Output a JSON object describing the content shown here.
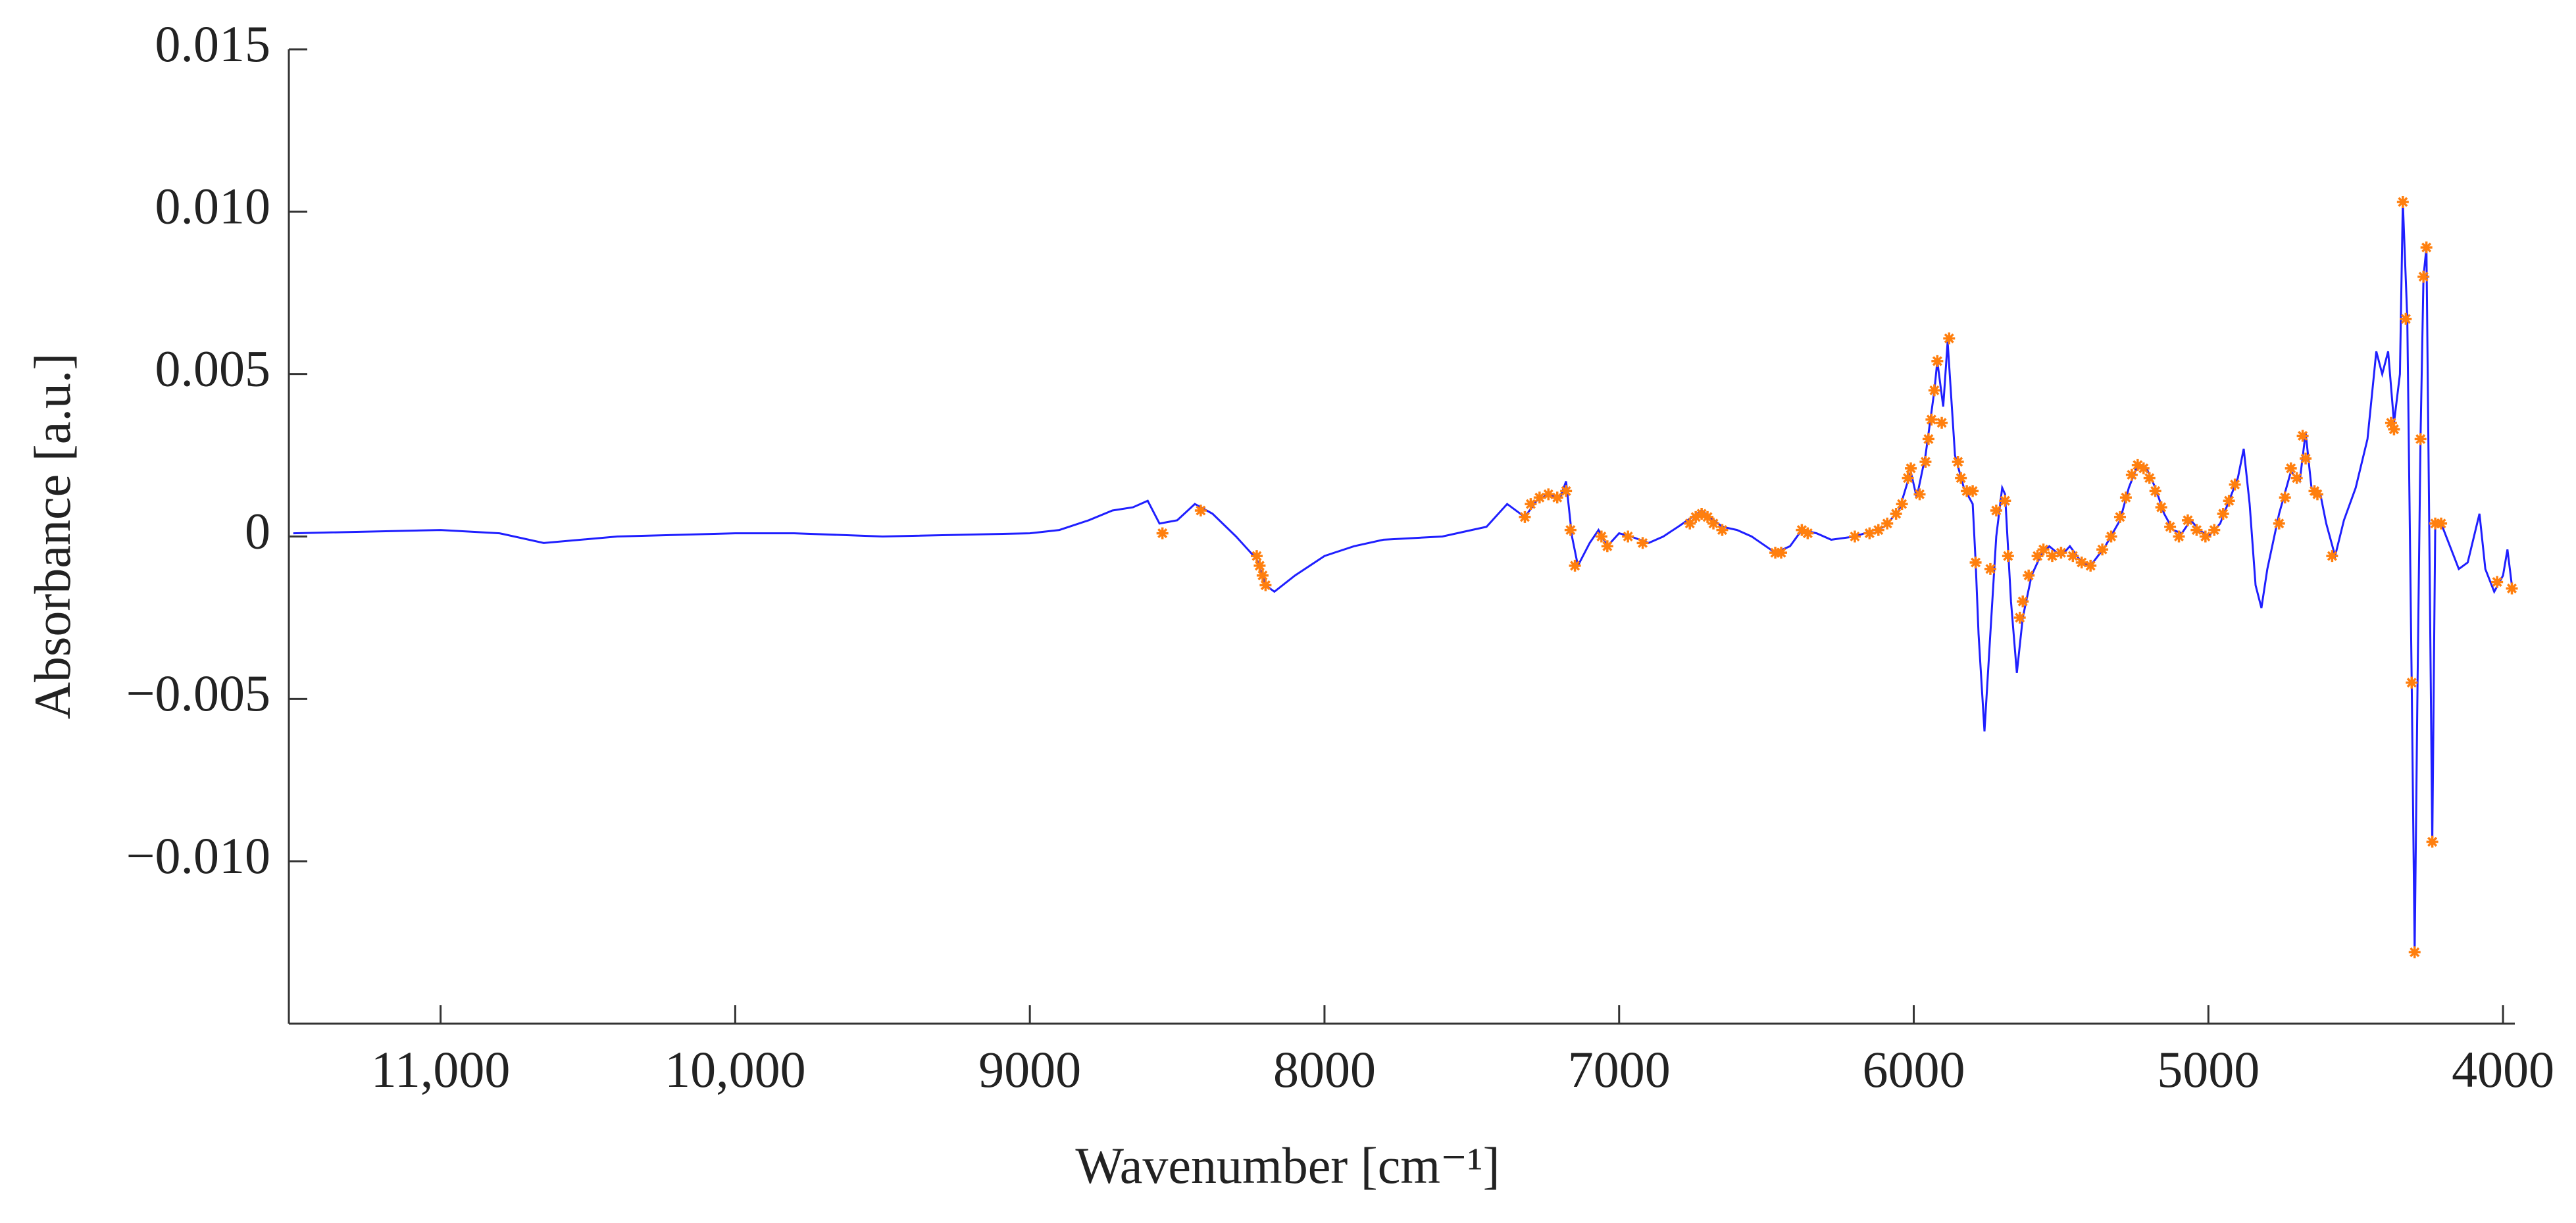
{
  "chart_data": {
    "type": "line",
    "xlabel": "Wavenumber [cm⁻¹]",
    "ylabel": "Absorbance [a.u.]",
    "xlim": [
      11515,
      3960
    ],
    "ylim": [
      -0.015,
      0.015
    ],
    "xticks": [
      {
        "value": 11000,
        "label": "11,000"
      },
      {
        "value": 10000,
        "label": "10,000"
      },
      9000,
      8000,
      7000,
      6000,
      5000,
      4000
    ],
    "yticks": [
      0.015,
      {
        "value": 0.01,
        "label": "0.010"
      },
      0.005,
      0,
      {
        "value": -0.005,
        "label": "−0.005"
      },
      {
        "value": -0.01,
        "label": "−0.010"
      }
    ],
    "series": [
      {
        "color": "#1f1fff",
        "style": "line",
        "x": [
          11500,
          11000,
          10800,
          10650,
          10400,
          10000,
          9800,
          9500,
          9000,
          8900,
          8800,
          8720,
          8650,
          8600,
          8560,
          8500,
          8440,
          8380,
          8300,
          8230,
          8200,
          8170,
          8100,
          8000,
          7900,
          7800,
          7600,
          7500,
          7450,
          7380,
          7320,
          7280,
          7240,
          7200,
          7180,
          7160,
          7140,
          7100,
          7070,
          7040,
          7000,
          6960,
          6900,
          6850,
          6800,
          6720,
          6650,
          6600,
          6550,
          6470,
          6420,
          6380,
          6330,
          6280,
          6200,
          6100,
          6050,
          6010,
          5990,
          5960,
          5930,
          5920,
          5900,
          5885,
          5860,
          5830,
          5800,
          5790,
          5780,
          5760,
          5740,
          5720,
          5700,
          5690,
          5670,
          5650,
          5630,
          5600,
          5570,
          5540,
          5500,
          5470,
          5430,
          5400,
          5350,
          5300,
          5270,
          5240,
          5210,
          5180,
          5150,
          5120,
          5090,
          5060,
          5030,
          5000,
          4960,
          4930,
          4900,
          4880,
          4860,
          4840,
          4820,
          4800,
          4760,
          4720,
          4690,
          4670,
          4650,
          4620,
          4600,
          4570,
          4540,
          4500,
          4460,
          4430,
          4410,
          4390,
          4370,
          4350,
          4340,
          4325,
          4310,
          4300,
          4290,
          4280,
          4270,
          4260,
          4250,
          4240,
          4230,
          4210,
          4180,
          4150,
          4120,
          4080,
          4060,
          4030,
          4000,
          3985,
          3970
        ],
        "values": [
          0.0001,
          0.0002,
          0.0001,
          -0.0002,
          0.0,
          0.0001,
          0.0001,
          0.0,
          0.0001,
          0.0002,
          0.0005,
          0.0008,
          0.0009,
          0.0011,
          0.0004,
          0.0005,
          0.001,
          0.0007,
          0.0,
          -0.0007,
          -0.0015,
          -0.0017,
          -0.0012,
          -0.0006,
          -0.0003,
          -0.0001,
          0.0,
          0.0002,
          0.0003,
          0.001,
          0.0006,
          0.0011,
          0.0013,
          0.0012,
          0.0017,
          0.0,
          -0.0009,
          -0.0002,
          0.0002,
          -0.0003,
          0.0001,
          0.0,
          -0.0002,
          0.0,
          0.0003,
          0.0008,
          0.0003,
          0.0002,
          0.0,
          -0.0005,
          -0.0003,
          0.0002,
          0.0001,
          -0.0001,
          0.0,
          0.0003,
          0.0008,
          0.002,
          0.0012,
          0.0025,
          0.0045,
          0.0054,
          0.004,
          0.006,
          0.0025,
          0.0015,
          0.001,
          -0.0008,
          -0.003,
          -0.006,
          -0.003,
          0.0,
          0.0015,
          0.0013,
          -0.002,
          -0.0042,
          -0.0025,
          -0.0012,
          -0.0006,
          -0.0003,
          -0.0006,
          -0.0003,
          -0.0008,
          -0.0009,
          -0.0003,
          0.0005,
          0.0015,
          0.0022,
          0.0021,
          0.0015,
          0.0007,
          0.0002,
          0.0001,
          0.0005,
          0.0002,
          0.0,
          0.0004,
          0.0011,
          0.0018,
          0.0027,
          0.001,
          -0.0015,
          -0.0022,
          -0.001,
          0.0007,
          0.002,
          0.0017,
          0.0032,
          0.0015,
          0.0013,
          0.0004,
          -0.0006,
          0.0005,
          0.0015,
          0.003,
          0.0057,
          0.005,
          0.0057,
          0.0035,
          0.005,
          0.0103,
          0.0067,
          -0.0045,
          -0.0128,
          -0.0045,
          0.003,
          0.008,
          0.0089,
          0.0,
          -0.0094,
          0.0004,
          0.0004,
          -0.0003,
          -0.001,
          -0.0008,
          0.0007,
          -0.001,
          -0.0017,
          -0.0012,
          -0.0004,
          -0.0015
        ]
      },
      {
        "color": "#ff7f0e",
        "style": "asterisk",
        "x": [
          8550,
          8420,
          8230,
          8220,
          8210,
          8200,
          7320,
          7300,
          7270,
          7240,
          7210,
          7180,
          7165,
          7150,
          7060,
          7040,
          6970,
          6920,
          6760,
          6740,
          6720,
          6700,
          6680,
          6650,
          6470,
          6450,
          6380,
          6360,
          6200,
          6150,
          6120,
          6090,
          6060,
          6040,
          6020,
          6010,
          5980,
          5960,
          5950,
          5940,
          5930,
          5920,
          5905,
          5880,
          5850,
          5840,
          5820,
          5800,
          5790,
          5740,
          5720,
          5690,
          5680,
          5640,
          5630,
          5610,
          5580,
          5560,
          5530,
          5500,
          5460,
          5430,
          5400,
          5360,
          5330,
          5300,
          5280,
          5260,
          5240,
          5220,
          5200,
          5180,
          5160,
          5130,
          5100,
          5070,
          5040,
          5010,
          4980,
          4950,
          4930,
          4910,
          4760,
          4740,
          4720,
          4700,
          4680,
          4670,
          4640,
          4630,
          4580,
          4380,
          4370,
          4340,
          4330,
          4310,
          4300,
          4280,
          4270,
          4260,
          4240,
          4230,
          4210,
          4020,
          3970
        ],
        "values": [
          0.0001,
          0.0008,
          -0.0006,
          -0.0009,
          -0.0012,
          -0.0015,
          0.0006,
          0.001,
          0.0012,
          0.0013,
          0.0012,
          0.0014,
          0.0002,
          -0.0009,
          0.0,
          -0.0003,
          0.0,
          -0.0002,
          0.0004,
          0.0006,
          0.0007,
          0.0006,
          0.0004,
          0.0002,
          -0.0005,
          -0.0005,
          0.0002,
          0.0001,
          0.0,
          0.0001,
          0.0002,
          0.0004,
          0.0007,
          0.001,
          0.0018,
          0.0021,
          0.0013,
          0.0023,
          0.003,
          0.0036,
          0.0045,
          0.0054,
          0.0035,
          0.0061,
          0.0023,
          0.0018,
          0.0014,
          0.0014,
          -0.0008,
          -0.001,
          0.0008,
          0.0011,
          -0.0006,
          -0.0025,
          -0.002,
          -0.0012,
          -0.0006,
          -0.0004,
          -0.0006,
          -0.0005,
          -0.0006,
          -0.0008,
          -0.0009,
          -0.0004,
          0.0,
          0.0006,
          0.0012,
          0.0019,
          0.0022,
          0.0021,
          0.0018,
          0.0014,
          0.0009,
          0.0003,
          0.0,
          0.0005,
          0.0002,
          0.0,
          0.0002,
          0.0007,
          0.0011,
          0.0016,
          0.0004,
          0.0012,
          0.0021,
          0.0018,
          0.0031,
          0.0024,
          0.0014,
          0.0013,
          -0.0006,
          0.0035,
          0.0033,
          0.0103,
          0.0067,
          -0.0045,
          -0.0128,
          0.003,
          0.008,
          0.0089,
          -0.0094,
          0.0004,
          0.0004,
          -0.0014,
          -0.0016
        ]
      }
    ]
  }
}
